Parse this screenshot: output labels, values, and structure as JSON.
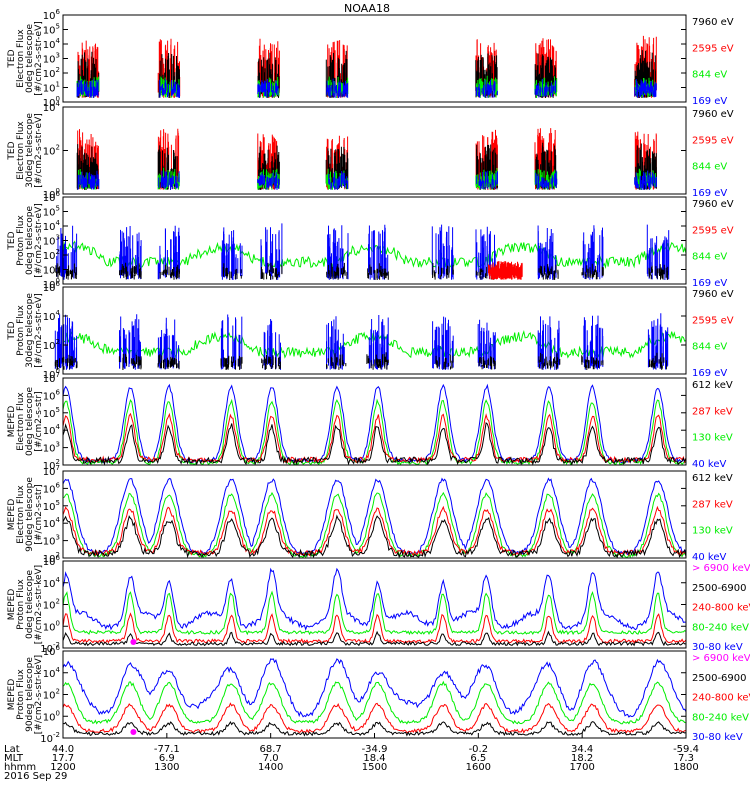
{
  "title": "NOAA18",
  "colors": {
    "black": "#000000",
    "red": "#ff0000",
    "green": "#00ee00",
    "blue": "#0000ff",
    "magenta": "#ff00ff"
  },
  "chart_data": {
    "type": "line",
    "title": "NOAA18",
    "time_axis": {
      "range_hhmm": [
        "1200",
        "1800"
      ],
      "rows": [
        {
          "label": "Lat",
          "values": [
            "44.0",
            "-77.1",
            "68.7",
            "-34.9",
            "-0.2",
            "34.4",
            "-59.4"
          ]
        },
        {
          "label": "MLT",
          "values": [
            "17.7",
            "6.9",
            "7.0",
            "18.4",
            "6.5",
            "18.2",
            "7.3"
          ]
        },
        {
          "label": "hhmm",
          "values": [
            "1200",
            "1300",
            "1400",
            "1500",
            "1600",
            "1700",
            "1800"
          ]
        }
      ],
      "date": "2016 Sep 29"
    },
    "panels": [
      {
        "ylabel": [
          "TED",
          "Electron Flux",
          "0deg telescope",
          "[#/cm2-s-str-eV]"
        ],
        "ylim": [
          1,
          1000000
        ],
        "scale": "log",
        "yticks": [
          {
            "b": "10",
            "e": "0"
          },
          {
            "b": "10",
            "e": "1"
          },
          {
            "b": "10",
            "e": "2"
          },
          {
            "b": "10",
            "e": "3"
          },
          {
            "b": "10",
            "e": "4"
          },
          {
            "b": "10",
            "e": "5"
          },
          {
            "b": "10",
            "e": "6"
          }
        ],
        "legend": [
          {
            "label": "7960 eV",
            "color": "#000000"
          },
          {
            "label": "2595 eV",
            "color": "#ff0000"
          },
          {
            "label": "844 eV",
            "color": "#00ee00"
          },
          {
            "label": "169 eV",
            "color": "#0000ff"
          }
        ]
      },
      {
        "ylabel": [
          "TED",
          "Electron Flux",
          "30deg telescope",
          "[#/cm2-s-str-eV]"
        ],
        "ylim": [
          1,
          100000
        ],
        "scale": "log",
        "yticks": [
          {
            "b": "10",
            "e": "0"
          },
          {
            "b": "10",
            "e": "2"
          },
          {
            "b": "10",
            "e": "4"
          }
        ],
        "legend": [
          {
            "label": "7960 eV",
            "color": "#000000"
          },
          {
            "label": "2595 eV",
            "color": "#ff0000"
          },
          {
            "label": "844 eV",
            "color": "#00ee00"
          },
          {
            "label": "169 eV",
            "color": "#0000ff"
          }
        ]
      },
      {
        "ylabel": [
          "TED",
          "Proton Flux",
          "0deg telescope",
          "[#/cm2-s-str-eV]"
        ],
        "ylim": [
          1,
          1000000
        ],
        "scale": "log",
        "yticks": [
          {
            "b": "10",
            "e": "0"
          },
          {
            "b": "10",
            "e": "1"
          },
          {
            "b": "10",
            "e": "2"
          },
          {
            "b": "10",
            "e": "3"
          },
          {
            "b": "10",
            "e": "4"
          },
          {
            "b": "10",
            "e": "5"
          },
          {
            "b": "10",
            "e": "6"
          }
        ],
        "legend": [
          {
            "label": "7960 eV",
            "color": "#000000"
          },
          {
            "label": "2595 eV",
            "color": "#ff0000"
          },
          {
            "label": "844 eV",
            "color": "#00ee00"
          },
          {
            "label": "169 eV",
            "color": "#0000ff"
          }
        ]
      },
      {
        "ylabel": [
          "TED",
          "Proton Flux",
          "30deg telescope",
          "[#/cm2-s-str-eV]"
        ],
        "ylim": [
          1,
          1000000
        ],
        "scale": "log",
        "yticks": [
          {
            "b": "10",
            "e": "0"
          },
          {
            "b": "10",
            "e": "2"
          },
          {
            "b": "10",
            "e": "4"
          },
          {
            "b": "10",
            "e": "6"
          }
        ],
        "legend": [
          {
            "label": "7960 eV",
            "color": "#000000"
          },
          {
            "label": "2595 eV",
            "color": "#ff0000"
          },
          {
            "label": "844 eV",
            "color": "#00ee00"
          },
          {
            "label": "169 eV",
            "color": "#0000ff"
          }
        ]
      },
      {
        "ylabel": [
          "MEPED",
          "Electron Flux",
          "0deg telescope",
          "[#/cm2-s-str]"
        ],
        "ylim": [
          100,
          10000000
        ],
        "scale": "log",
        "yticks": [
          {
            "b": "10",
            "e": "2"
          },
          {
            "b": "10",
            "e": "3"
          },
          {
            "b": "10",
            "e": "4"
          },
          {
            "b": "10",
            "e": "5"
          },
          {
            "b": "10",
            "e": "6"
          },
          {
            "b": "10",
            "e": "7"
          }
        ],
        "legend": [
          {
            "label": "612 keV",
            "color": "#000000"
          },
          {
            "label": "287 keV",
            "color": "#ff0000"
          },
          {
            "label": "130 keV",
            "color": "#00ee00"
          },
          {
            "label": "40 keV",
            "color": "#0000ff"
          }
        ]
      },
      {
        "ylabel": [
          "MEPED",
          "Electron Flux",
          "90deg telescope",
          "[#/cm2-s-str]"
        ],
        "ylim": [
          100,
          10000000
        ],
        "scale": "log",
        "yticks": [
          {
            "b": "10",
            "e": "2"
          },
          {
            "b": "10",
            "e": "3"
          },
          {
            "b": "10",
            "e": "4"
          },
          {
            "b": "10",
            "e": "5"
          },
          {
            "b": "10",
            "e": "6"
          },
          {
            "b": "10",
            "e": "7"
          }
        ],
        "legend": [
          {
            "label": "612 keV",
            "color": "#000000"
          },
          {
            "label": "287 keV",
            "color": "#ff0000"
          },
          {
            "label": "130 keV",
            "color": "#00ee00"
          },
          {
            "label": "40 keV",
            "color": "#0000ff"
          }
        ]
      },
      {
        "ylabel": [
          "MEPED",
          "Proton Flux",
          "0deg telescope",
          "[#/cm2-s-str-keV]"
        ],
        "ylim": [
          0.01,
          1000000
        ],
        "scale": "log",
        "yticks": [
          {
            "b": "10",
            "e": "-2"
          },
          {
            "b": "10",
            "e": "0"
          },
          {
            "b": "10",
            "e": "2"
          },
          {
            "b": "10",
            "e": "4"
          },
          {
            "b": "10",
            "e": "6"
          }
        ],
        "legend": [
          {
            "label": "> 6900 keV",
            "color": "#ff00ff"
          },
          {
            "label": "2500-6900",
            "color": "#000000"
          },
          {
            "label": "240-800 keV",
            "color": "#ff0000"
          },
          {
            "label": "80-240 keV",
            "color": "#00ee00"
          },
          {
            "label": "30-80 keV",
            "color": "#0000ff"
          }
        ]
      },
      {
        "ylabel": [
          "MEPED",
          "Proton Flux",
          "90deg telescope",
          "[#/cm2-s-str-keV]"
        ],
        "ylim": [
          0.01,
          1000000
        ],
        "scale": "log",
        "yticks": [
          {
            "b": "10",
            "e": "-2"
          },
          {
            "b": "10",
            "e": "0"
          },
          {
            "b": "10",
            "e": "2"
          },
          {
            "b": "10",
            "e": "4"
          },
          {
            "b": "10",
            "e": "6"
          }
        ],
        "legend": [
          {
            "label": "> 6900 keV",
            "color": "#ff00ff"
          },
          {
            "label": "2500-6900",
            "color": "#000000"
          },
          {
            "label": "240-800 keV",
            "color": "#ff0000"
          },
          {
            "label": "80-240 keV",
            "color": "#00ee00"
          },
          {
            "label": "30-80 keV",
            "color": "#0000ff"
          }
        ]
      }
    ]
  }
}
